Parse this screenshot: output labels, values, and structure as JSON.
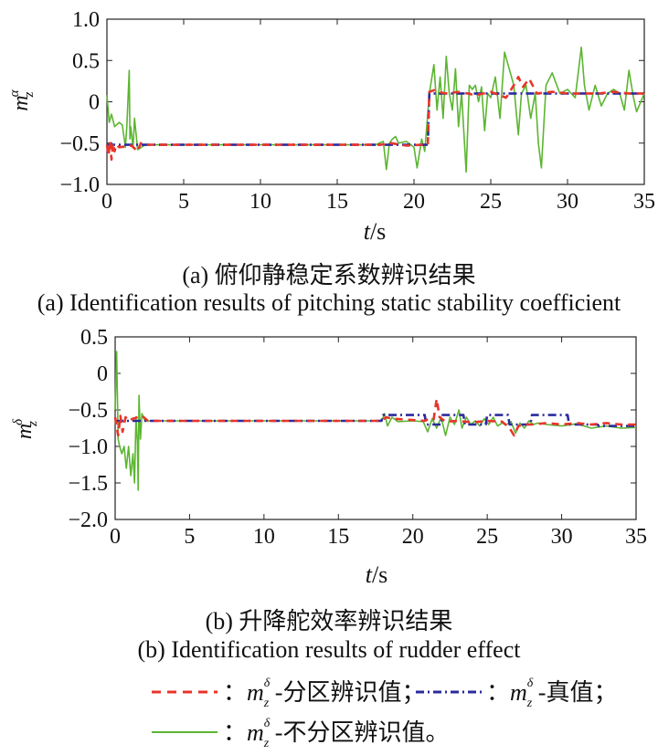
{
  "chart_data": [
    {
      "type": "line",
      "ylabel_base": "m",
      "ylabel_sup": "α",
      "ylabel_sub": "z",
      "xlabel_var": "t",
      "xlabel_unit": "/s",
      "xlim": [
        0,
        35
      ],
      "ylim": [
        -1.0,
        1.0
      ],
      "xticks": [
        0,
        5,
        10,
        15,
        20,
        25,
        30,
        35
      ],
      "yticks": [
        -1.0,
        -0.5,
        0,
        0.5,
        1.0
      ],
      "ytick_labels": [
        "−1.0",
        "−0.5",
        "0",
        "0.5",
        "1.0"
      ],
      "caption_cn": "(a) 俯仰静稳定系数辨识结果",
      "caption_en": "(a) Identification results of pitching static stability coefficient",
      "series": [
        {
          "key": "true",
          "color": "#2b2b9e",
          "dash": "9 4 2 4",
          "x": [
            0,
            0.12,
            0.2,
            20.9,
            21.0,
            35
          ],
          "y": [
            -0.52,
            -0.52,
            -0.52,
            -0.52,
            0.1,
            0.1
          ]
        },
        {
          "key": "partition",
          "color": "#e8352a",
          "dash": "8 6",
          "x": [
            0,
            0.1,
            0.2,
            0.3,
            0.4,
            0.5,
            0.6,
            0.8,
            1.2,
            1.6,
            2.0,
            2.2,
            2.4,
            3,
            17.8,
            18.5,
            19.5,
            20.5,
            20.9,
            21.0,
            21.3,
            22,
            23,
            24,
            25,
            26,
            26.5,
            26.8,
            27.1,
            27.5,
            28,
            29,
            30,
            31,
            32,
            33,
            34,
            35
          ],
          "y": [
            -0.52,
            -0.65,
            -0.48,
            -0.7,
            -0.5,
            -0.6,
            -0.52,
            -0.55,
            -0.54,
            -0.53,
            -0.6,
            -0.5,
            -0.52,
            -0.52,
            -0.52,
            -0.5,
            -0.53,
            -0.52,
            -0.52,
            0.12,
            0.14,
            0.1,
            0.12,
            0.08,
            0.12,
            0.05,
            0.2,
            0.3,
            0.18,
            0.28,
            0.1,
            0.12,
            0.1,
            0.1,
            0.1,
            0.12,
            0.1,
            0.1
          ]
        },
        {
          "key": "nonpartition",
          "color": "#5cb531",
          "dash": "",
          "x": [
            0,
            0.15,
            0.3,
            0.5,
            0.8,
            1.0,
            1.2,
            1.3,
            1.45,
            1.5,
            1.55,
            1.7,
            1.8,
            2.0,
            2.5,
            5,
            10,
            15,
            17.5,
            18.0,
            18.2,
            18.4,
            18.6,
            18.8,
            19.0,
            19.5,
            20.0,
            20.2,
            20.5,
            20.7,
            21.0,
            21.3,
            21.5,
            21.7,
            21.9,
            22.1,
            22.3,
            22.5,
            22.7,
            22.9,
            23.1,
            23.4,
            23.6,
            23.8,
            24.0,
            24.2,
            24.4,
            24.6,
            24.8,
            25.0,
            25.3,
            25.6,
            25.9,
            26.2,
            26.5,
            26.8,
            27.0,
            27.3,
            27.6,
            27.9,
            28.1,
            28.3,
            28.6,
            29.0,
            29.5,
            30.0,
            30.5,
            30.9,
            31.1,
            31.4,
            31.8,
            32.2,
            32.6,
            33.0,
            33.4,
            33.7,
            34.0,
            34.3,
            34.5,
            35
          ],
          "y": [
            0.08,
            -0.25,
            -0.15,
            -0.3,
            -0.25,
            -0.28,
            -0.55,
            -0.3,
            0.38,
            -0.45,
            -0.3,
            -0.55,
            -0.2,
            -0.58,
            -0.52,
            -0.52,
            -0.52,
            -0.52,
            -0.52,
            -0.48,
            -0.82,
            -0.5,
            -0.45,
            -0.42,
            -0.5,
            -0.48,
            -0.55,
            -0.8,
            -0.45,
            -0.6,
            0.1,
            0.45,
            -0.1,
            0.3,
            -0.2,
            0.55,
            0.1,
            -0.1,
            0.4,
            -0.3,
            0.1,
            -0.85,
            0.2,
            0.15,
            0.2,
            0.0,
            0.18,
            -0.35,
            0.1,
            0.05,
            0.3,
            -0.2,
            0.6,
            0.4,
            0.2,
            -0.4,
            0.1,
            0.2,
            -0.2,
            0.1,
            -0.5,
            -0.8,
            0.2,
            0.35,
            0.1,
            0.15,
            0.05,
            0.66,
            0.2,
            -0.1,
            0.2,
            -0.05,
            0.1,
            0.15,
            0.1,
            -0.1,
            0.38,
            0.05,
            -0.12,
            0.1
          ]
        }
      ]
    },
    {
      "type": "line",
      "ylabel_base": "m",
      "ylabel_sup": "δ",
      "ylabel_sub": "z",
      "xlabel_var": "t",
      "xlabel_unit": "/s",
      "xlim": [
        0,
        35
      ],
      "ylim": [
        -2.0,
        0.5
      ],
      "xticks": [
        0,
        5,
        10,
        15,
        20,
        25,
        30,
        35
      ],
      "yticks": [
        -2.0,
        -1.5,
        -1.0,
        -0.5,
        0,
        0.5
      ],
      "ytick_labels": [
        "−2.0",
        "−1.5",
        "−1.0",
        "−0.5",
        "0",
        "0.5"
      ],
      "caption_cn": "(b) 升降舵效率辨识结果",
      "caption_en": "(b) Identification results of rudder effect",
      "series": [
        {
          "key": "true",
          "color": "#2b2b9e",
          "dash": "9 4 2 4",
          "x": [
            0,
            17.9,
            18.0,
            20.8,
            20.9,
            21.9,
            22.0,
            23.4,
            23.5,
            24.9,
            25.0,
            26.4,
            26.5,
            27.9,
            28.0,
            30.4,
            30.5,
            32.4,
            32.5,
            35
          ],
          "y": [
            -0.65,
            -0.65,
            -0.57,
            -0.57,
            -0.7,
            -0.7,
            -0.57,
            -0.57,
            -0.7,
            -0.7,
            -0.57,
            -0.57,
            -0.7,
            -0.7,
            -0.57,
            -0.57,
            -0.7,
            -0.7,
            -0.72,
            -0.72
          ]
        },
        {
          "key": "partition",
          "color": "#e8352a",
          "dash": "8 6",
          "x": [
            0,
            0.2,
            0.35,
            0.5,
            0.7,
            0.9,
            1.2,
            1.5,
            1.8,
            2.2,
            3,
            17.9,
            18.2,
            18.6,
            20.8,
            21.1,
            21.4,
            21.6,
            21.8,
            22.2,
            23,
            24,
            25,
            26,
            26.5,
            26.8,
            27.1,
            27.5,
            28,
            29,
            30,
            31,
            32,
            33,
            34,
            35
          ],
          "y": [
            -0.6,
            -0.85,
            -0.58,
            -0.8,
            -0.6,
            -0.65,
            -0.62,
            -0.6,
            -0.58,
            -0.65,
            -0.65,
            -0.65,
            -0.6,
            -0.62,
            -0.65,
            -0.62,
            -0.63,
            -0.35,
            -0.6,
            -0.66,
            -0.65,
            -0.67,
            -0.65,
            -0.66,
            -0.75,
            -0.85,
            -0.72,
            -0.7,
            -0.7,
            -0.68,
            -0.7,
            -0.68,
            -0.7,
            -0.68,
            -0.7,
            -0.7
          ]
        },
        {
          "key": "nonpartition",
          "color": "#5cb531",
          "dash": "",
          "x": [
            0,
            0.1,
            0.2,
            0.3,
            0.45,
            0.6,
            0.75,
            0.9,
            1.05,
            1.2,
            1.3,
            1.4,
            1.5,
            1.55,
            1.6,
            1.7,
            1.8,
            2.0,
            2.5,
            5,
            10,
            15,
            17.5,
            17.9,
            18.1,
            18.3,
            18.6,
            19,
            20,
            20.7,
            21.0,
            21.3,
            21.6,
            21.9,
            22.2,
            22.5,
            22.8,
            23.1,
            23.3,
            23.6,
            23.9,
            24.2,
            24.5,
            24.8,
            25.1,
            25.4,
            25.7,
            26.0,
            26.3,
            26.6,
            26.9,
            27.2,
            27.5,
            27.8,
            28.1,
            28.4,
            29,
            30,
            31,
            32,
            33,
            34,
            35
          ],
          "y": [
            -0.5,
            0.3,
            -0.9,
            -1.0,
            -1.1,
            -1.0,
            -1.3,
            -1.0,
            -1.4,
            -1.1,
            -1.5,
            -0.6,
            -0.95,
            -1.6,
            -0.3,
            -0.9,
            -0.55,
            -0.65,
            -0.65,
            -0.65,
            -0.65,
            -0.65,
            -0.65,
            -0.65,
            -0.55,
            -0.72,
            -0.6,
            -0.66,
            -0.65,
            -0.66,
            -0.8,
            -0.62,
            -0.75,
            -0.6,
            -0.85,
            -0.6,
            -0.7,
            -0.5,
            -0.75,
            -0.6,
            -0.7,
            -0.65,
            -0.72,
            -0.62,
            -0.7,
            -0.6,
            -0.72,
            -0.68,
            -0.7,
            -0.66,
            -0.82,
            -0.68,
            -0.75,
            -0.65,
            -0.7,
            -0.68,
            -0.7,
            -0.72,
            -0.69,
            -0.75,
            -0.72,
            -0.75,
            -0.74
          ]
        }
      ]
    }
  ],
  "legend": {
    "partition": {
      "sep": "：",
      "m": "m",
      "sup": "δ",
      "sub": "z",
      "text": "-分区辨识值；"
    },
    "true": {
      "sep": "：",
      "m": "m",
      "sup": "δ",
      "sub": "z",
      "text": "-真值；"
    },
    "nonpartition": {
      "sep": "：",
      "m": "m",
      "sup": "δ",
      "sub": "z",
      "text": "-不分区辨识值。"
    }
  }
}
